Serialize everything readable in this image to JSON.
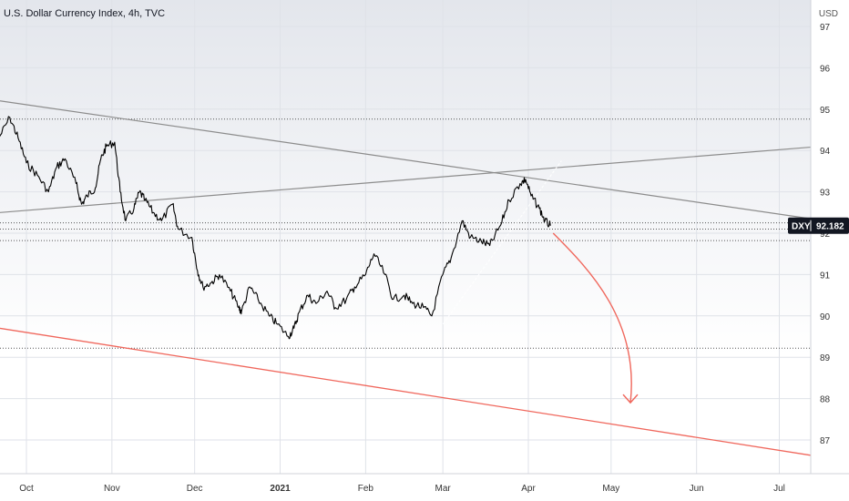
{
  "chart_data": {
    "type": "line",
    "title": "U.S. Dollar Currency Index, 4h, TVC",
    "currency": "USD",
    "symbol": "DXY",
    "last_price": "92.182",
    "x_ticks": [
      "Oct",
      "Nov",
      "Dec",
      "2021",
      "Feb",
      "Mar",
      "Apr",
      "May",
      "Jun",
      "Jul"
    ],
    "y_ticks": [
      87,
      88,
      89,
      90,
      91,
      92,
      93,
      94,
      95,
      96,
      97
    ],
    "ylim": [
      86.2,
      97.3
    ],
    "series": [
      {
        "x": [
          "2020-09-21",
          "2020-09-25",
          "2020-09-28",
          "2020-10-01",
          "2020-10-05",
          "2020-10-09",
          "2020-10-12",
          "2020-10-15",
          "2020-10-19",
          "2020-10-21",
          "2020-10-23",
          "2020-10-26",
          "2020-10-28",
          "2020-10-30",
          "2020-11-02",
          "2020-11-04",
          "2020-11-06",
          "2020-11-09",
          "2020-11-11",
          "2020-11-13",
          "2020-11-16",
          "2020-11-19",
          "2020-11-23",
          "2020-11-25",
          "2020-11-30",
          "2020-12-02",
          "2020-12-04",
          "2020-12-07",
          "2020-12-10",
          "2020-12-14",
          "2020-12-17",
          "2020-12-18",
          "2020-12-21",
          "2020-12-24",
          "2020-12-28",
          "2020-12-31",
          "2021-01-04",
          "2021-01-06",
          "2021-01-08",
          "2021-01-11",
          "2021-01-14",
          "2021-01-18",
          "2021-01-21",
          "2021-01-25",
          "2021-01-28",
          "2021-02-01",
          "2021-02-04",
          "2021-02-08",
          "2021-02-11",
          "2021-02-15",
          "2021-02-18",
          "2021-02-22",
          "2021-02-25",
          "2021-03-01",
          "2021-03-04",
          "2021-03-08",
          "2021-03-11",
          "2021-03-15",
          "2021-03-18",
          "2021-03-22",
          "2021-03-25",
          "2021-03-29",
          "2021-03-31",
          "2021-04-02",
          "2021-04-05",
          "2021-04-07",
          "2021-04-09"
        ],
        "y": [
          94.3,
          94.8,
          94.3,
          93.7,
          93.4,
          93.0,
          93.6,
          93.8,
          93.2,
          92.7,
          92.9,
          93.1,
          93.8,
          94.1,
          94.2,
          93.0,
          92.3,
          92.6,
          93.0,
          92.8,
          92.5,
          92.3,
          92.7,
          92.1,
          91.9,
          91.1,
          90.7,
          90.8,
          91.0,
          90.6,
          90.2,
          90.1,
          90.7,
          90.4,
          90.0,
          89.8,
          89.5,
          89.7,
          90.1,
          90.5,
          90.3,
          90.6,
          90.2,
          90.4,
          90.7,
          91.0,
          91.5,
          91.0,
          90.4,
          90.5,
          90.3,
          90.2,
          90.0,
          91.0,
          91.4,
          92.3,
          91.9,
          91.8,
          91.7,
          92.2,
          92.8,
          93.2,
          93.3,
          92.9,
          92.6,
          92.3,
          92.18
        ]
      }
    ],
    "grid": true,
    "price_axis": "right",
    "time_axis": "bottom"
  }
}
